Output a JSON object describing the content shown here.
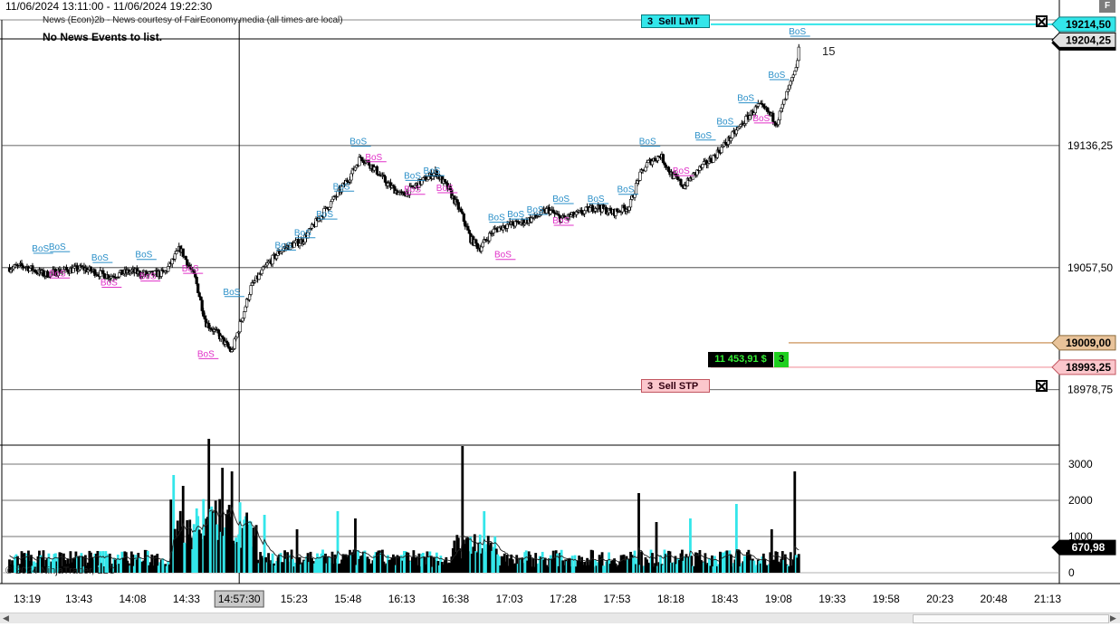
{
  "header": {
    "date_range": "11/06/2024 13:11:00 - 11/06/2024 19:22:30",
    "news_source": "News (Econ)2b - News courtesy of FairEconomy.media (all times are local)",
    "news_status": "No News Events to list."
  },
  "copyright": "© 2024 NinjaTrader, LLC",
  "colors": {
    "sell_lmt": "#33e6ea",
    "sell_stp": "#fbc7cc",
    "position": "#e8c39a",
    "bos_blue": "#2a8fc8",
    "bos_magenta": "#e030c8",
    "volume_cyan": "#33e6ea"
  },
  "orders": {
    "sell_lmt": {
      "qty": "3",
      "label": "Sell LMT",
      "price": "19214,50"
    },
    "sell_stp": {
      "qty": "3",
      "label": "Sell STP",
      "price": "18993,25"
    }
  },
  "position": {
    "pnl": "11 453,91 $",
    "qty": "3",
    "price": "19009,00"
  },
  "last_price": "19204,25",
  "count_label": "15",
  "volume_last": "670,98",
  "icons": [
    "close-order-icon",
    "scroll-left-icon",
    "scroll-right-icon",
    "f-button"
  ],
  "f_button_label": "F",
  "chart_data": [
    {
      "type": "candlestick",
      "ylim": [
        18950,
        19222
      ],
      "y_ticks": [
        "19136,25",
        "19057,50",
        "18978,75"
      ],
      "y_tick_values": [
        19136.25,
        19057.5,
        18978.75
      ],
      "x_tick_labels": [
        "13:19",
        "13:43",
        "14:08",
        "14:33",
        "14:57:30",
        "15:23",
        "15:48",
        "16:13",
        "16:38",
        "17:03",
        "17:28",
        "17:53",
        "18:18",
        "18:43",
        "19:08",
        "19:33",
        "19:58",
        "20:23",
        "20:48",
        "21:13"
      ],
      "crosshair_x_label": "14:57:30",
      "price_path": [
        [
          13.18,
          19057.5
        ],
        [
          13.3,
          19058.5
        ],
        [
          13.45,
          19053
        ],
        [
          13.58,
          19055.5
        ],
        [
          13.75,
          19057
        ],
        [
          13.95,
          19052
        ],
        [
          14.12,
          19055
        ],
        [
          14.25,
          19053
        ],
        [
          14.38,
          19054
        ],
        [
          14.45,
          19063
        ],
        [
          14.5,
          19070
        ],
        [
          14.55,
          19062
        ],
        [
          14.62,
          19050
        ],
        [
          14.7,
          19022
        ],
        [
          14.8,
          19014
        ],
        [
          14.9,
          19003
        ],
        [
          14.98,
          19025
        ],
        [
          15.05,
          19045
        ],
        [
          15.18,
          19060
        ],
        [
          15.3,
          19070
        ],
        [
          15.45,
          19075
        ],
        [
          15.6,
          19092
        ],
        [
          15.72,
          19105
        ],
        [
          15.82,
          19117
        ],
        [
          15.9,
          19129
        ],
        [
          16.0,
          19122
        ],
        [
          16.1,
          19112
        ],
        [
          16.22,
          19104
        ],
        [
          16.35,
          19112
        ],
        [
          16.48,
          19119
        ],
        [
          16.58,
          19108
        ],
        [
          16.68,
          19092
        ],
        [
          16.75,
          19076
        ],
        [
          16.82,
          19070
        ],
        [
          16.92,
          19081
        ],
        [
          17.02,
          19085
        ],
        [
          17.12,
          19086
        ],
        [
          17.25,
          19090
        ],
        [
          17.35,
          19095
        ],
        [
          17.45,
          19089
        ],
        [
          17.58,
          19092
        ],
        [
          17.72,
          19097
        ],
        [
          17.85,
          19093
        ],
        [
          17.98,
          19097
        ],
        [
          18.05,
          19115
        ],
        [
          18.12,
          19125
        ],
        [
          18.22,
          19130
        ],
        [
          18.3,
          19118
        ],
        [
          18.4,
          19110
        ],
        [
          18.52,
          19121
        ],
        [
          18.62,
          19128
        ],
        [
          18.75,
          19140
        ],
        [
          18.88,
          19153
        ],
        [
          18.98,
          19162
        ],
        [
          19.05,
          19158
        ],
        [
          19.12,
          19151
        ],
        [
          19.2,
          19170
        ],
        [
          19.27,
          19185
        ],
        [
          19.3,
          19205
        ]
      ],
      "levels": [
        {
          "name": "Sell LMT",
          "value": 19214.5
        },
        {
          "name": "Last",
          "value": 19204.25
        },
        {
          "name": "Position",
          "value": 19009.0
        },
        {
          "name": "Sell STP",
          "value": 18993.25
        }
      ],
      "bos_labels": [
        {
          "text": "BoS",
          "x": 13.42,
          "y": 19068,
          "color": "blue"
        },
        {
          "text": "BoS",
          "x": 13.55,
          "y": 19069,
          "color": "blue"
        },
        {
          "text": "BoS",
          "x": 13.88,
          "y": 19062,
          "color": "blue"
        },
        {
          "text": "BoS",
          "x": 14.22,
          "y": 19064,
          "color": "blue"
        },
        {
          "text": "BoS",
          "x": 14.9,
          "y": 19040,
          "color": "blue"
        },
        {
          "text": "BoS",
          "x": 15.3,
          "y": 19070,
          "color": "blue"
        },
        {
          "text": "BoS",
          "x": 15.45,
          "y": 19078,
          "color": "blue"
        },
        {
          "text": "BoS",
          "x": 15.62,
          "y": 19090,
          "color": "blue"
        },
        {
          "text": "BoS",
          "x": 15.75,
          "y": 19108,
          "color": "blue"
        },
        {
          "text": "BoS",
          "x": 15.88,
          "y": 19137,
          "color": "blue"
        },
        {
          "text": "BoS",
          "x": 16.3,
          "y": 19115,
          "color": "blue"
        },
        {
          "text": "BoS",
          "x": 16.45,
          "y": 19118,
          "color": "blue"
        },
        {
          "text": "BoS",
          "x": 16.95,
          "y": 19088,
          "color": "blue"
        },
        {
          "text": "BoS",
          "x": 17.1,
          "y": 19090,
          "color": "blue"
        },
        {
          "text": "BoS",
          "x": 17.25,
          "y": 19093,
          "color": "blue"
        },
        {
          "text": "BoS",
          "x": 17.45,
          "y": 19100,
          "color": "blue"
        },
        {
          "text": "BoS",
          "x": 17.72,
          "y": 19100,
          "color": "blue"
        },
        {
          "text": "BoS",
          "x": 17.95,
          "y": 19106,
          "color": "blue"
        },
        {
          "text": "BoS",
          "x": 18.12,
          "y": 19137,
          "color": "blue"
        },
        {
          "text": "BoS",
          "x": 18.55,
          "y": 19141,
          "color": "blue"
        },
        {
          "text": "BoS",
          "x": 18.72,
          "y": 19150,
          "color": "blue"
        },
        {
          "text": "BoS",
          "x": 18.88,
          "y": 19165,
          "color": "blue"
        },
        {
          "text": "BoS",
          "x": 19.12,
          "y": 19180,
          "color": "blue"
        },
        {
          "text": "BoS",
          "x": 19.28,
          "y": 19208,
          "color": "blue"
        },
        {
          "text": "BoS",
          "x": 13.55,
          "y": 19052,
          "color": "magenta"
        },
        {
          "text": "BoS",
          "x": 13.95,
          "y": 19046,
          "color": "magenta"
        },
        {
          "text": "BoS",
          "x": 14.25,
          "y": 19050,
          "color": "magenta"
        },
        {
          "text": "BoS",
          "x": 14.58,
          "y": 19055,
          "color": "magenta"
        },
        {
          "text": "BoS",
          "x": 14.7,
          "y": 19000,
          "color": "magenta"
        },
        {
          "text": "BoS",
          "x": 16.0,
          "y": 19127,
          "color": "magenta"
        },
        {
          "text": "BoS",
          "x": 16.3,
          "y": 19106,
          "color": "magenta"
        },
        {
          "text": "BoS",
          "x": 16.55,
          "y": 19107,
          "color": "magenta"
        },
        {
          "text": "BoS",
          "x": 17.0,
          "y": 19064,
          "color": "magenta"
        },
        {
          "text": "BoS",
          "x": 17.45,
          "y": 19086,
          "color": "magenta"
        },
        {
          "text": "BoS",
          "x": 18.38,
          "y": 19118,
          "color": "magenta"
        },
        {
          "text": "BoS",
          "x": 19.0,
          "y": 19152,
          "color": "magenta"
        }
      ]
    },
    {
      "type": "bar",
      "name": "Volume",
      "ylim": [
        0,
        3500
      ],
      "y_ticks": [
        "3000",
        "2000",
        "1000",
        "0"
      ],
      "y_tick_values": [
        3000,
        2000,
        1000,
        0
      ],
      "last_value": 670.98,
      "spikes": [
        {
          "x": 14.45,
          "value": 2700
        },
        {
          "x": 14.52,
          "value": 2400
        },
        {
          "x": 14.72,
          "value": 3700
        },
        {
          "x": 14.82,
          "value": 2900
        },
        {
          "x": 14.9,
          "value": 2800
        },
        {
          "x": 15.15,
          "value": 1600
        },
        {
          "x": 15.4,
          "value": 1200
        },
        {
          "x": 15.72,
          "value": 1700
        },
        {
          "x": 15.85,
          "value": 1500
        },
        {
          "x": 16.68,
          "value": 3500
        },
        {
          "x": 16.85,
          "value": 1700
        },
        {
          "x": 18.05,
          "value": 2200
        },
        {
          "x": 18.18,
          "value": 1400
        },
        {
          "x": 18.45,
          "value": 1500
        },
        {
          "x": 18.8,
          "value": 1900
        },
        {
          "x": 19.08,
          "value": 1200
        },
        {
          "x": 19.25,
          "value": 2800
        }
      ]
    }
  ]
}
